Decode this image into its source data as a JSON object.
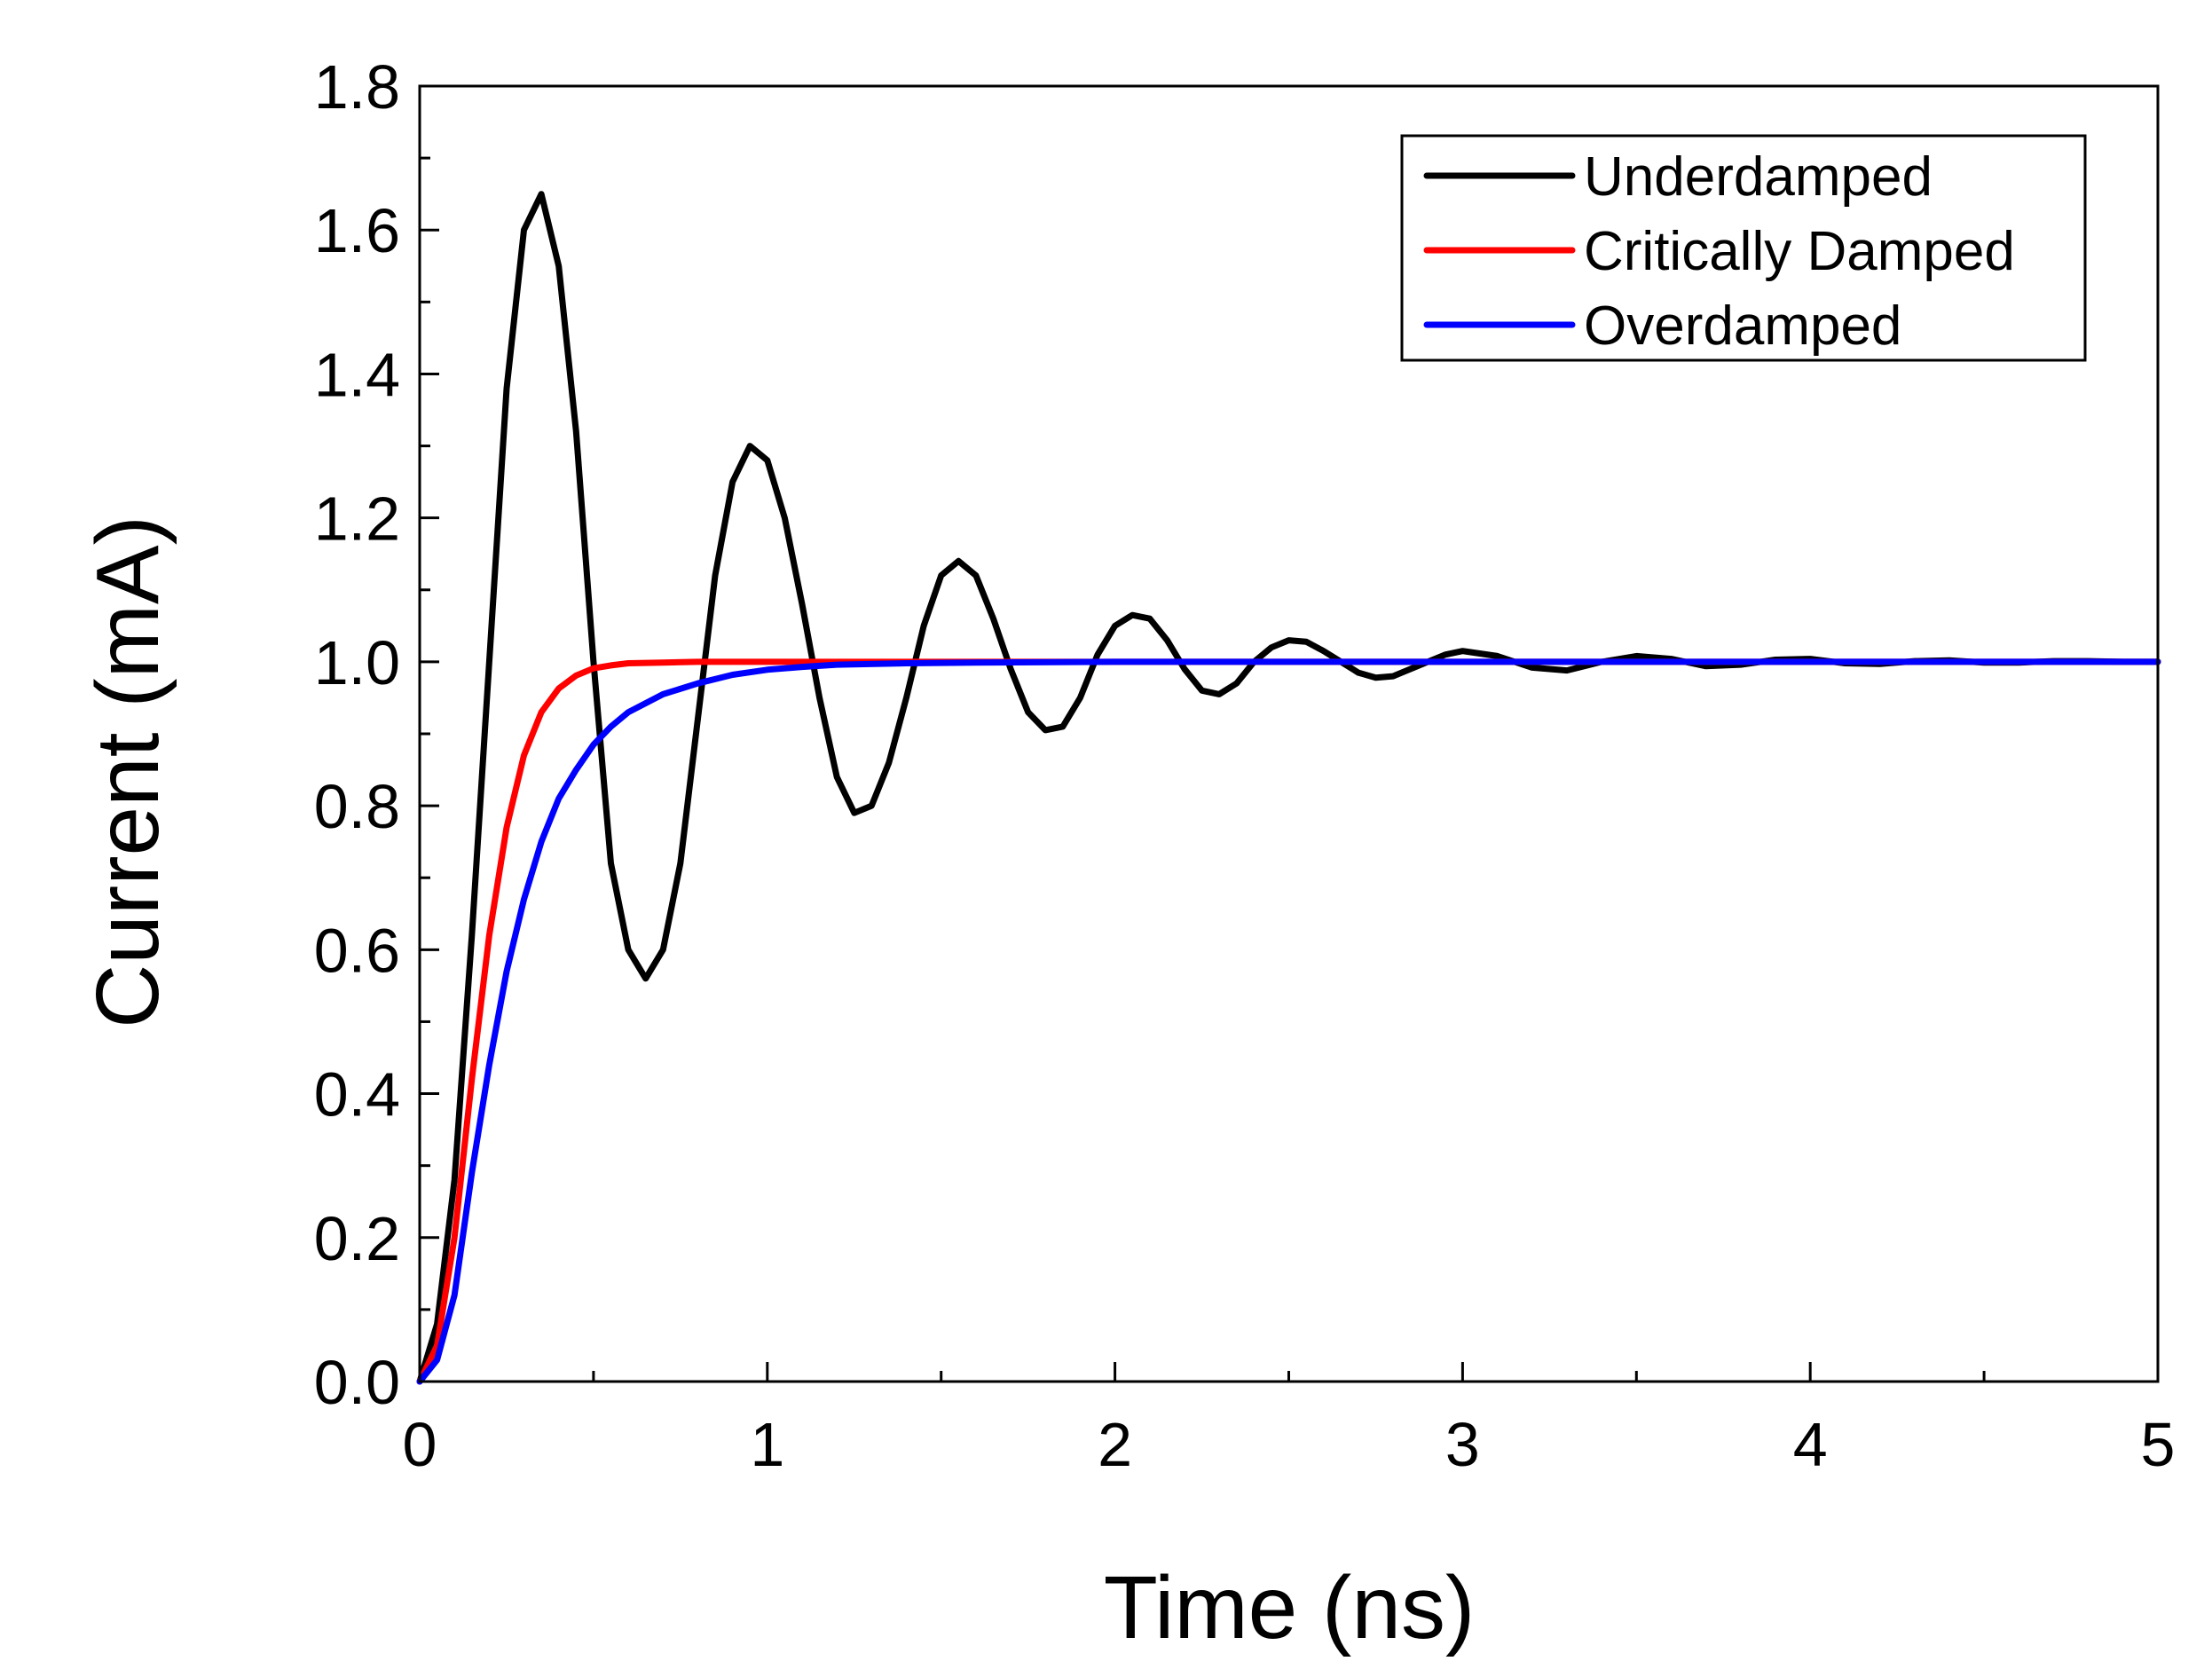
{
  "chart_data": {
    "type": "line",
    "title": "",
    "xlabel": "Time (ns)",
    "ylabel": "Current (mA)",
    "xlim": [
      0,
      5
    ],
    "ylim": [
      0,
      1.8
    ],
    "grid": false,
    "legend_position": "top-right",
    "x_ticks": [
      "0",
      "1",
      "2",
      "3",
      "4",
      "5"
    ],
    "y_ticks": [
      "0.0",
      "0.2",
      "0.4",
      "0.6",
      "0.8",
      "1.0",
      "1.2",
      "1.4",
      "1.6",
      "1.8"
    ],
    "series": [
      {
        "name": "Underdamped",
        "color": "#000000",
        "x": [
          0,
          0.05,
          0.1,
          0.15,
          0.2,
          0.25,
          0.3,
          0.35,
          0.4,
          0.45,
          0.5,
          0.55,
          0.6,
          0.65,
          0.7,
          0.75,
          0.8,
          0.85,
          0.9,
          0.95,
          1.0,
          1.05,
          1.1,
          1.15,
          1.2,
          1.25,
          1.3,
          1.35,
          1.4,
          1.45,
          1.5,
          1.55,
          1.6,
          1.65,
          1.7,
          1.75,
          1.8,
          1.85,
          1.9,
          1.95,
          2.0,
          2.05,
          2.1,
          2.15,
          2.2,
          2.25,
          2.3,
          2.35,
          2.4,
          2.45,
          2.5,
          2.55,
          2.6,
          2.65,
          2.7,
          2.75,
          2.8,
          2.85,
          2.9,
          2.95,
          3.0,
          3.1,
          3.2,
          3.3,
          3.4,
          3.5,
          3.6,
          3.7,
          3.8,
          3.9,
          4.0,
          4.1,
          4.2,
          4.3,
          4.4,
          4.5,
          4.6,
          4.7,
          4.8,
          4.9,
          5.0
        ],
        "values": [
          0,
          0.08,
          0.28,
          0.62,
          1.0,
          1.38,
          1.6,
          1.65,
          1.55,
          1.32,
          1.0,
          0.72,
          0.6,
          0.56,
          0.6,
          0.72,
          0.92,
          1.12,
          1.25,
          1.3,
          1.28,
          1.2,
          1.08,
          0.95,
          0.84,
          0.79,
          0.8,
          0.86,
          0.95,
          1.05,
          1.12,
          1.14,
          1.12,
          1.06,
          0.99,
          0.93,
          0.905,
          0.91,
          0.95,
          1.01,
          1.05,
          1.065,
          1.06,
          1.03,
          0.99,
          0.96,
          0.955,
          0.97,
          1.0,
          1.02,
          1.03,
          1.028,
          1.015,
          1.0,
          0.985,
          0.978,
          0.98,
          0.99,
          1.0,
          1.01,
          1.015,
          1.008,
          0.992,
          0.988,
          1.0,
          1.008,
          1.004,
          0.994,
          0.996,
          1.003,
          1.004,
          0.998,
          0.997,
          1.001,
          1.002,
          0.999,
          0.999,
          1.001,
          1.001,
          1.0,
          1.0
        ]
      },
      {
        "name": "Critically Damped",
        "color": "#ff0000",
        "x": [
          0,
          0.05,
          0.1,
          0.15,
          0.2,
          0.25,
          0.3,
          0.35,
          0.4,
          0.45,
          0.5,
          0.55,
          0.6,
          0.7,
          0.8,
          0.9,
          1.0,
          1.2,
          1.5,
          2.0,
          3.0,
          4.0,
          5.0
        ],
        "values": [
          0,
          0.05,
          0.2,
          0.42,
          0.62,
          0.77,
          0.87,
          0.93,
          0.963,
          0.981,
          0.991,
          0.995,
          0.998,
          0.999,
          1.0,
          1.0,
          1.0,
          1.0,
          1.0,
          1.0,
          1.0,
          1.0,
          1.0
        ]
      },
      {
        "name": "Overdamped",
        "color": "#0000ff",
        "x": [
          0,
          0.05,
          0.1,
          0.15,
          0.2,
          0.25,
          0.3,
          0.35,
          0.4,
          0.45,
          0.5,
          0.55,
          0.6,
          0.7,
          0.8,
          0.9,
          1.0,
          1.1,
          1.2,
          1.4,
          1.6,
          2.0,
          3.0,
          4.0,
          5.0
        ],
        "values": [
          0,
          0.03,
          0.12,
          0.29,
          0.44,
          0.57,
          0.67,
          0.75,
          0.81,
          0.85,
          0.885,
          0.91,
          0.93,
          0.955,
          0.97,
          0.982,
          0.989,
          0.993,
          0.996,
          0.998,
          0.999,
          1.0,
          1.0,
          1.0,
          1.0
        ]
      }
    ]
  }
}
